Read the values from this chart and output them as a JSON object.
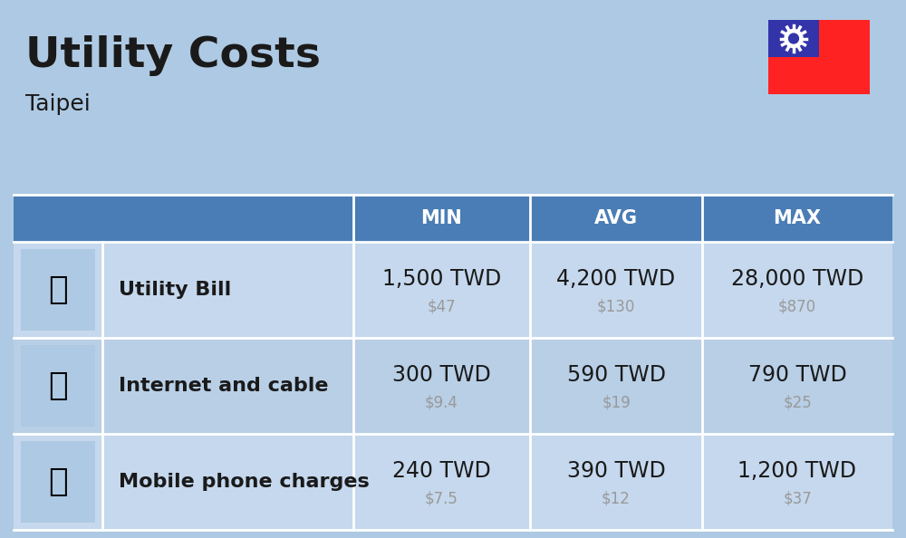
{
  "title": "Utility Costs",
  "subtitle": "Taipei",
  "background_color": "#aec9e3",
  "header_bg_color": "#4a7db5",
  "header_text_color": "#ffffff",
  "row_bg_color_odd": "#c5d8ed",
  "row_bg_color_even": "#b8cfe6",
  "col_headers": [
    "MIN",
    "AVG",
    "MAX"
  ],
  "rows": [
    {
      "label": "Utility Bill",
      "min_twd": "1,500 TWD",
      "min_usd": "$47",
      "avg_twd": "4,200 TWD",
      "avg_usd": "$130",
      "max_twd": "28,000 TWD",
      "max_usd": "$870"
    },
    {
      "label": "Internet and cable",
      "min_twd": "300 TWD",
      "min_usd": "$9.4",
      "avg_twd": "590 TWD",
      "avg_usd": "$19",
      "max_twd": "790 TWD",
      "max_usd": "$25"
    },
    {
      "label": "Mobile phone charges",
      "min_twd": "240 TWD",
      "min_usd": "$7.5",
      "avg_twd": "390 TWD",
      "avg_usd": "$12",
      "max_twd": "1,200 TWD",
      "max_usd": "$37"
    }
  ],
  "twd_fontsize": 17,
  "usd_fontsize": 12,
  "label_fontsize": 16,
  "header_fontsize": 15,
  "title_fontsize": 34,
  "subtitle_fontsize": 18,
  "usd_color": "#999999",
  "text_color": "#1a1a1a",
  "white": "#ffffff",
  "flag_red": "#FF2222",
  "flag_blue": "#3333AA",
  "sep_line_color": "#ffffff"
}
